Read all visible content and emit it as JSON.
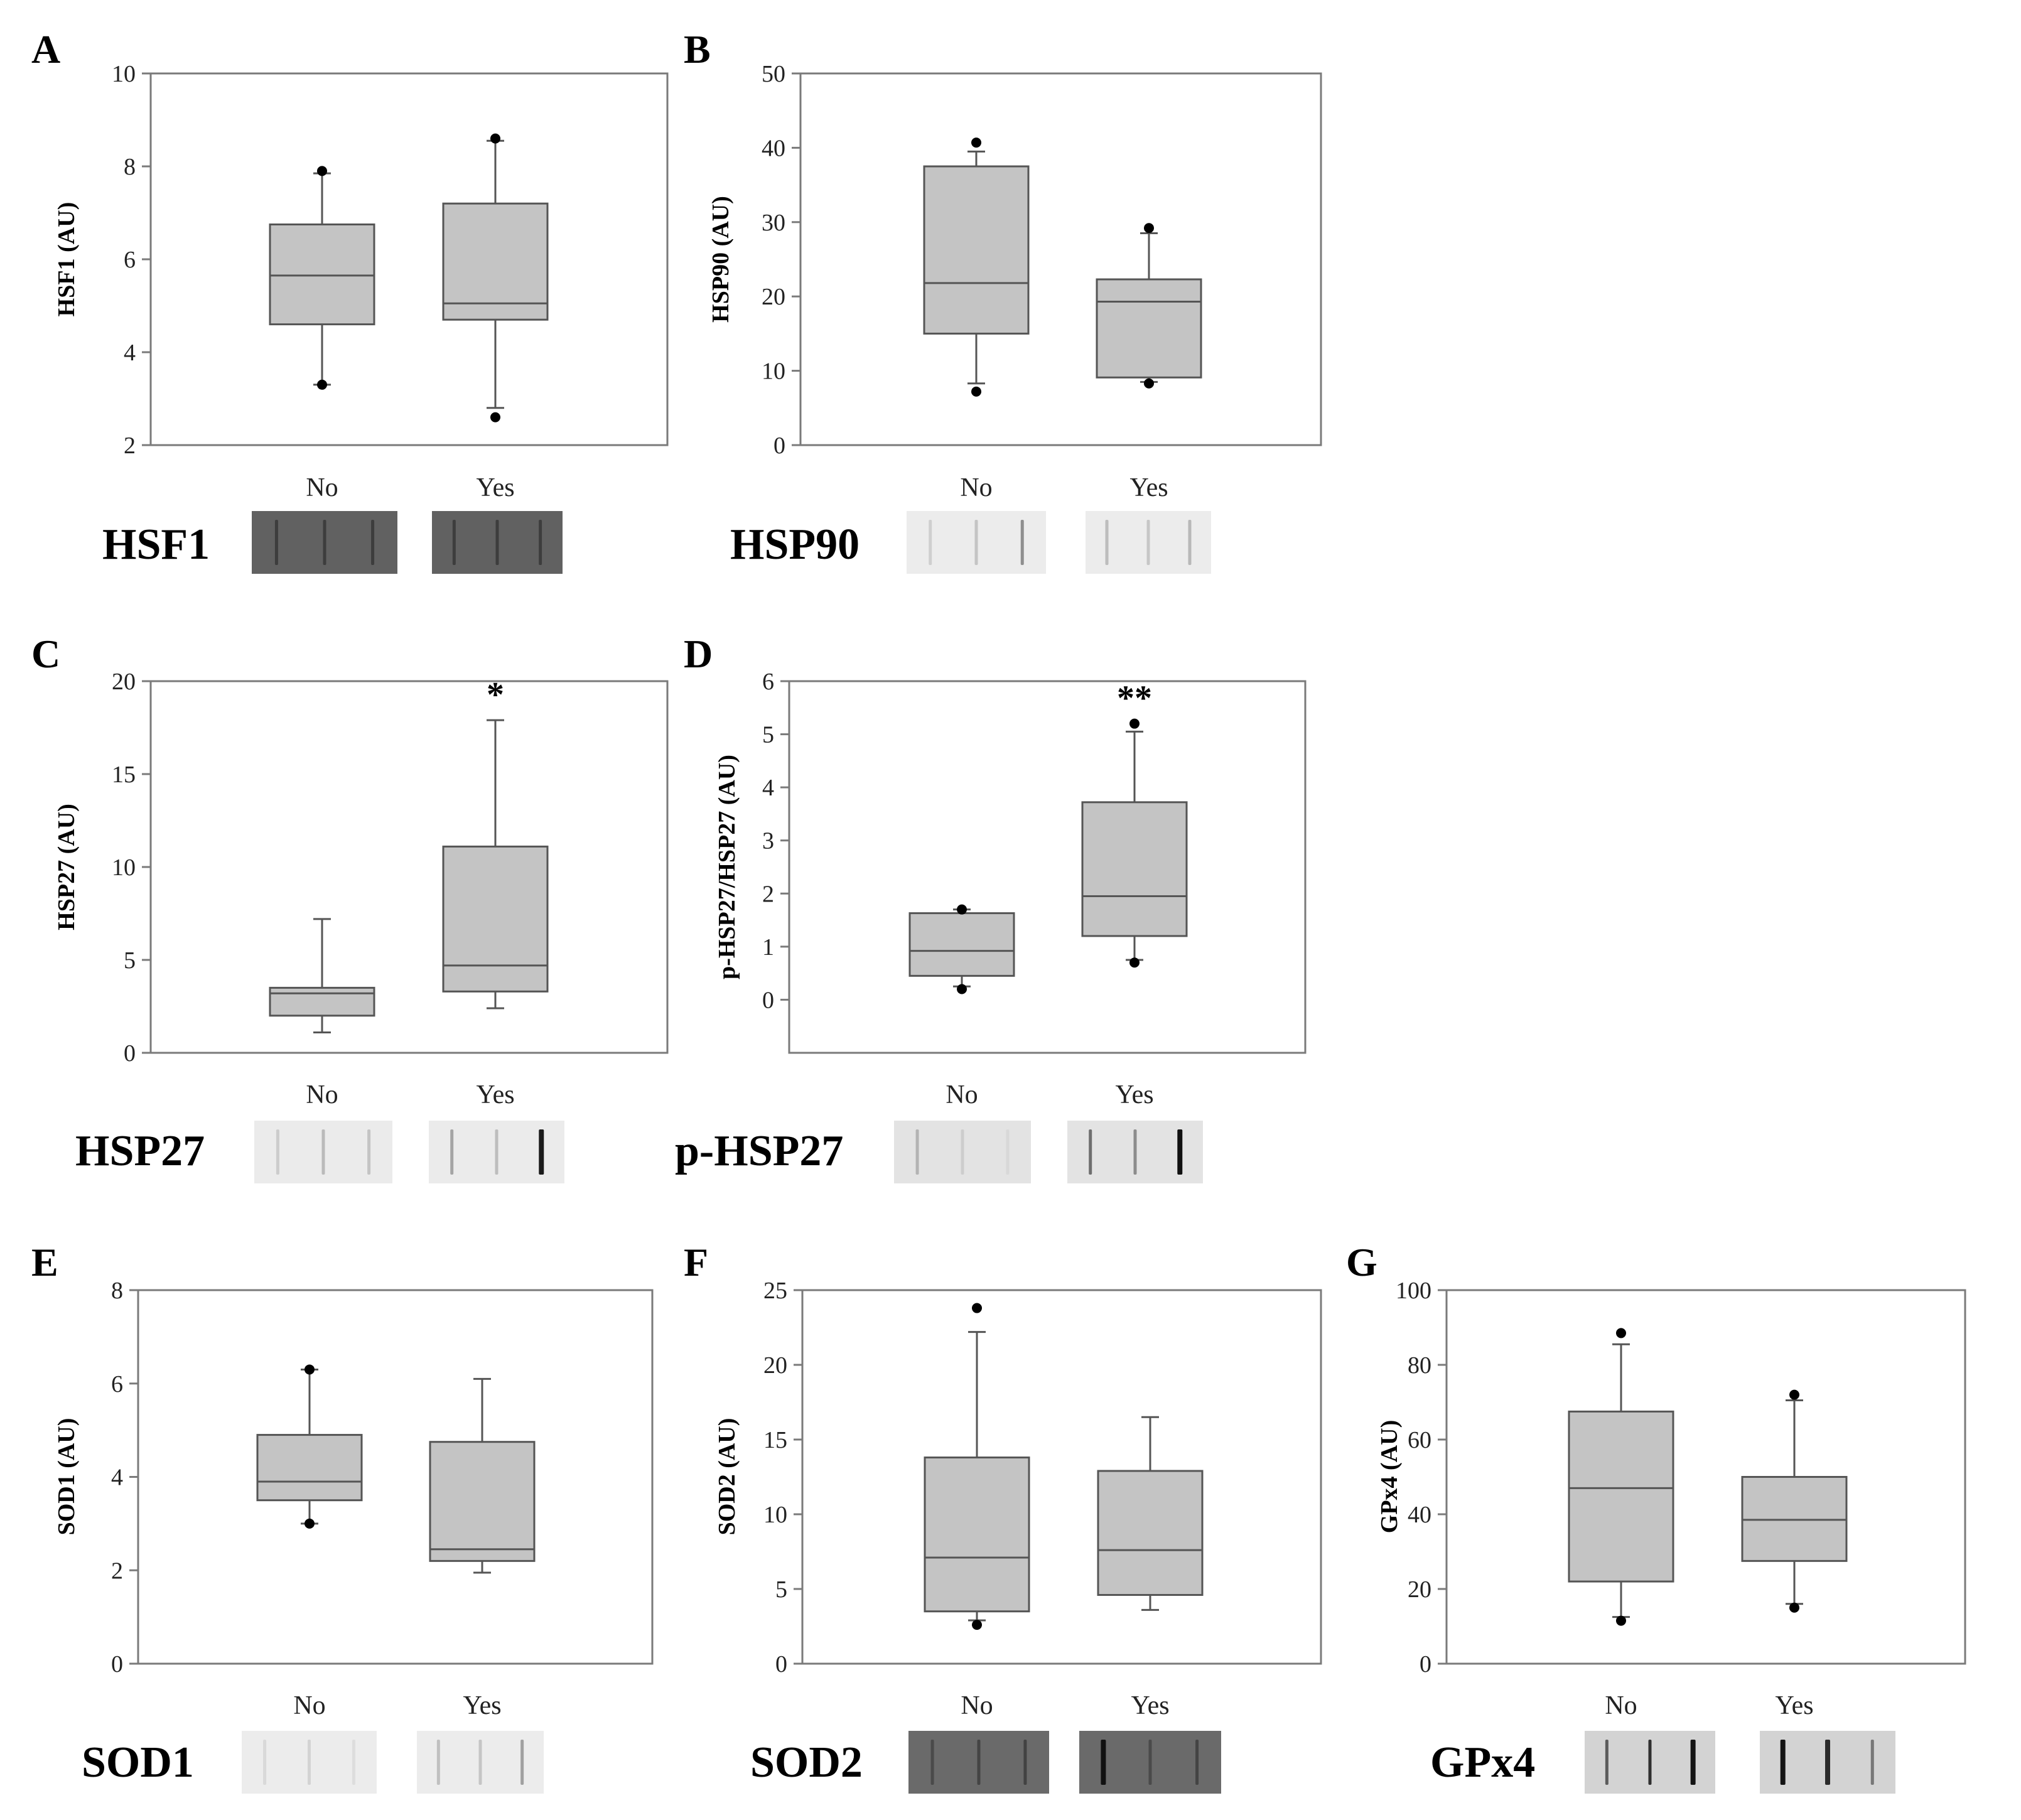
{
  "chart_data": [
    {
      "type": "box",
      "panel": "A",
      "ylabel": "HSF1 (AU)",
      "ylim": [
        2,
        10
      ],
      "yticks": [
        "2",
        "4",
        "6",
        "8",
        "10"
      ],
      "categories": [
        "No",
        "Yes"
      ],
      "boxes": [
        {
          "whisker_low": 3.3,
          "q1": 4.6,
          "median": 5.65,
          "q3": 6.75,
          "whisker_high": 7.85,
          "outliers": [
            3.3,
            7.9
          ]
        },
        {
          "whisker_low": 2.8,
          "q1": 4.7,
          "median": 5.05,
          "q3": 7.2,
          "whisker_high": 8.55,
          "outliers": [
            2.6,
            8.6
          ]
        }
      ],
      "significance": "",
      "blot": {
        "label": "HSF1",
        "background": "#616161",
        "bands": [
          [
            "#3d3d3d",
            "#3d3d3d",
            "#3d3d3d"
          ],
          [
            "#3d3d3d",
            "#3d3d3d",
            "#3d3d3d"
          ]
        ]
      }
    },
    {
      "type": "box",
      "panel": "B",
      "ylabel": "HSP90 (AU)",
      "ylim": [
        0,
        50
      ],
      "yticks": [
        "0",
        "10",
        "20",
        "30",
        "40",
        "50"
      ],
      "categories": [
        "No",
        "Yes"
      ],
      "boxes": [
        {
          "whisker_low": 8.3,
          "q1": 15,
          "median": 21.8,
          "q3": 37.5,
          "whisker_high": 39.5,
          "outliers": [
            7.2,
            40.7
          ]
        },
        {
          "whisker_low": 8.5,
          "q1": 9.1,
          "median": 19.3,
          "q3": 22.3,
          "whisker_high": 28.5,
          "outliers": [
            8.3,
            29.2
          ]
        }
      ],
      "significance": "",
      "blot": {
        "label": "HSP90",
        "background": "#ececec",
        "bands": [
          [
            "#cfcfcf",
            "#c4c4c4",
            "#8f8f8f"
          ],
          [
            "#bdbdbd",
            "#c6c6c6",
            "#b8b8b8"
          ]
        ]
      }
    },
    {
      "type": "box",
      "panel": "C",
      "ylabel": "HSP27 (AU)",
      "ylim": [
        0,
        20
      ],
      "yticks": [
        "0",
        "5",
        "10",
        "15",
        "20"
      ],
      "categories": [
        "No",
        "Yes"
      ],
      "boxes": [
        {
          "whisker_low": 1.1,
          "q1": 2.0,
          "median": 3.2,
          "q3": 3.5,
          "whisker_high": 7.2,
          "outliers": []
        },
        {
          "whisker_low": 2.4,
          "q1": 3.3,
          "median": 4.7,
          "q3": 11.1,
          "whisker_high": 17.9,
          "outliers": []
        }
      ],
      "significance": "*",
      "blot": {
        "label": "HSP27",
        "background": "#ebebeb",
        "bands": [
          [
            "#cccccc",
            "#bababa",
            "#c4c4c4"
          ],
          [
            "#a5a5a5",
            "#bdbdbd",
            "#1b1b1b"
          ]
        ]
      }
    },
    {
      "type": "box",
      "panel": "D",
      "ylabel": "p-HSP27/HSP27 (AU)",
      "ylim": [
        -1,
        6
      ],
      "yticks": [
        "0",
        "1",
        "2",
        "3",
        "4",
        "5",
        "6"
      ],
      "categories": [
        "No",
        "Yes"
      ],
      "boxes": [
        {
          "whisker_low": 0.25,
          "q1": 0.45,
          "median": 0.92,
          "q3": 1.63,
          "whisker_high": 1.7,
          "outliers": [
            0.2,
            1.7
          ]
        },
        {
          "whisker_low": 0.75,
          "q1": 1.2,
          "median": 1.95,
          "q3": 3.72,
          "whisker_high": 5.05,
          "outliers": [
            0.7,
            5.2
          ]
        }
      ],
      "significance": "**",
      "blot": {
        "label": "p-HSP27",
        "background": "#e3e3e3",
        "bands": [
          [
            "#b3b3b3",
            "#cdcdcd",
            "#d8d8d8"
          ],
          [
            "#6f6f6f",
            "#8c8c8c",
            "#111111"
          ]
        ]
      }
    },
    {
      "type": "box",
      "panel": "E",
      "ylabel": "SOD1 (AU)",
      "ylim": [
        0,
        8
      ],
      "yticks": [
        "0",
        "2",
        "4",
        "6",
        "8"
      ],
      "categories": [
        "No",
        "Yes"
      ],
      "boxes": [
        {
          "whisker_low": 3.0,
          "q1": 3.5,
          "median": 3.9,
          "q3": 4.9,
          "whisker_high": 6.3,
          "outliers": [
            3.0,
            6.3
          ]
        },
        {
          "whisker_low": 1.95,
          "q1": 2.2,
          "median": 2.45,
          "q3": 4.75,
          "whisker_high": 6.1,
          "outliers": []
        }
      ],
      "significance": "",
      "blot": {
        "label": "SOD1",
        "background": "#ececec",
        "bands": [
          [
            "#d9d9d9",
            "#d3d3d3",
            "#dddddd"
          ],
          [
            "#c0c0c0",
            "#c5c5c5",
            "#a0a0a0"
          ]
        ]
      }
    },
    {
      "type": "box",
      "panel": "F",
      "ylabel": "SOD2 (AU)",
      "ylim": [
        0,
        25
      ],
      "yticks": [
        "0",
        "5",
        "10",
        "15",
        "20",
        "25"
      ],
      "categories": [
        "No",
        "Yes"
      ],
      "boxes": [
        {
          "whisker_low": 2.9,
          "q1": 3.5,
          "median": 7.1,
          "q3": 13.8,
          "whisker_high": 22.2,
          "outliers": [
            2.6,
            23.8
          ]
        },
        {
          "whisker_low": 3.6,
          "q1": 4.6,
          "median": 7.6,
          "q3": 12.9,
          "whisker_high": 16.5,
          "outliers": []
        }
      ],
      "significance": "",
      "blot": {
        "label": "SOD2",
        "background": "#6a6a6a",
        "bands": [
          [
            "#4a4a4a",
            "#444444",
            "#424242"
          ],
          [
            "#111111",
            "#4a4a4a",
            "#444444"
          ]
        ]
      }
    },
    {
      "type": "box",
      "panel": "G",
      "ylabel": "GPx4 (AU)",
      "ylim": [
        0,
        100
      ],
      "yticks": [
        "0",
        "20",
        "40",
        "60",
        "80",
        "100"
      ],
      "categories": [
        "No",
        "Yes"
      ],
      "boxes": [
        {
          "whisker_low": 12.5,
          "q1": 22,
          "median": 47,
          "q3": 67.5,
          "whisker_high": 85.5,
          "outliers": [
            11.5,
            88.5
          ]
        },
        {
          "whisker_low": 16,
          "q1": 27.5,
          "median": 38.5,
          "q3": 50,
          "whisker_high": 70.5,
          "outliers": [
            15,
            72
          ]
        }
      ],
      "significance": "",
      "blot": {
        "label": "GPx4",
        "background": "#d3d3d3",
        "bands": [
          [
            "#5c5c5c",
            "#303030",
            "#151515"
          ],
          [
            "#141414",
            "#2a2a2a",
            "#777777"
          ]
        ]
      }
    }
  ],
  "colors": {
    "box_fill": "#c4c4c4",
    "stroke": "#555555",
    "frame": "#7a7a7a",
    "point": "#000000"
  }
}
